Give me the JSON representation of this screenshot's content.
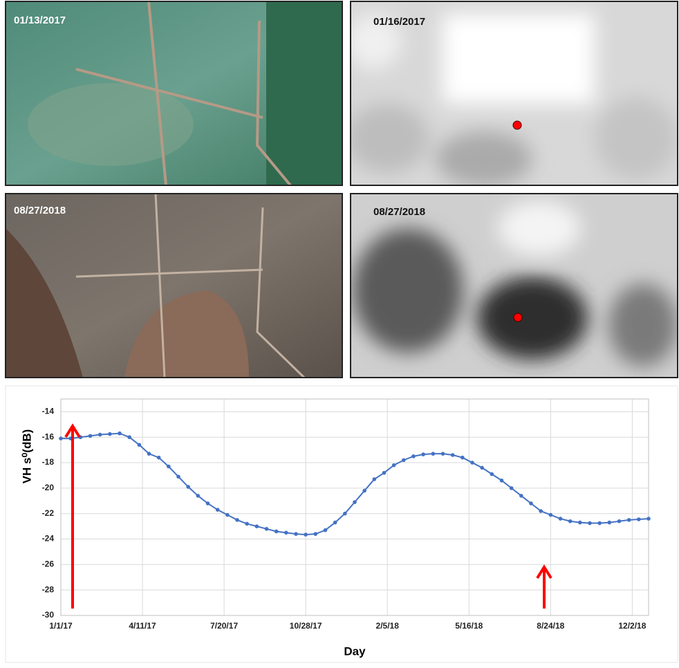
{
  "images": [
    {
      "date": "01/13/2017"
    },
    {
      "date": "01/16/2017"
    },
    {
      "date": "08/27/2018"
    },
    {
      "date": "08/27/2018"
    }
  ],
  "chart_data": {
    "type": "line",
    "y_label": "VH s⁰(dB)",
    "x_label": "Day",
    "color": "#4472c4",
    "grid": true,
    "x": [
      0,
      12,
      24,
      36,
      48,
      60,
      72,
      84,
      96,
      108,
      120,
      132,
      144,
      156,
      168,
      180,
      192,
      204,
      216,
      228,
      240,
      252,
      264,
      276,
      288,
      300,
      312,
      324,
      336,
      348,
      360,
      372,
      384,
      396,
      408,
      420,
      432,
      444,
      456,
      468,
      480,
      492,
      504,
      516,
      528,
      540,
      552,
      564,
      576,
      588,
      600,
      612,
      624,
      636,
      648,
      660,
      672,
      684,
      696,
      708,
      720
    ],
    "values": [
      -16.1,
      -16.1,
      -16.0,
      -15.9,
      -15.8,
      -15.75,
      -15.7,
      -16.0,
      -16.6,
      -17.3,
      -17.6,
      -18.3,
      -19.1,
      -19.9,
      -20.6,
      -21.2,
      -21.7,
      -22.1,
      -22.5,
      -22.8,
      -23.0,
      -23.2,
      -23.4,
      -23.5,
      -23.6,
      -23.65,
      -23.6,
      -23.3,
      -22.7,
      -22.0,
      -21.1,
      -20.2,
      -19.3,
      -18.8,
      -18.2,
      -17.8,
      -17.5,
      -17.35,
      -17.3,
      -17.3,
      -17.4,
      -17.6,
      -18.0,
      -18.4,
      -18.9,
      -19.4,
      -20.0,
      -20.6,
      -21.2,
      -21.8,
      -22.1,
      -22.4,
      -22.6,
      -22.7,
      -22.75,
      -22.75,
      -22.7,
      -22.6,
      -22.5,
      -22.45,
      -22.4
    ],
    "xlim": [
      0,
      720
    ],
    "ylim": [
      -30,
      -13
    ],
    "xticks": [
      {
        "value": 0,
        "label": "1/1/17"
      },
      {
        "value": 100,
        "label": "4/11/17"
      },
      {
        "value": 200,
        "label": "7/20/17"
      },
      {
        "value": 300,
        "label": "10/28/17"
      },
      {
        "value": 400,
        "label": "2/5/18"
      },
      {
        "value": 500,
        "label": "5/16/18"
      },
      {
        "value": 600,
        "label": "8/24/18"
      },
      {
        "value": 700,
        "label": "12/2/18"
      }
    ],
    "yticks": [
      -30,
      -28,
      -26,
      -24,
      -22,
      -20,
      -18,
      -16,
      -14
    ]
  }
}
